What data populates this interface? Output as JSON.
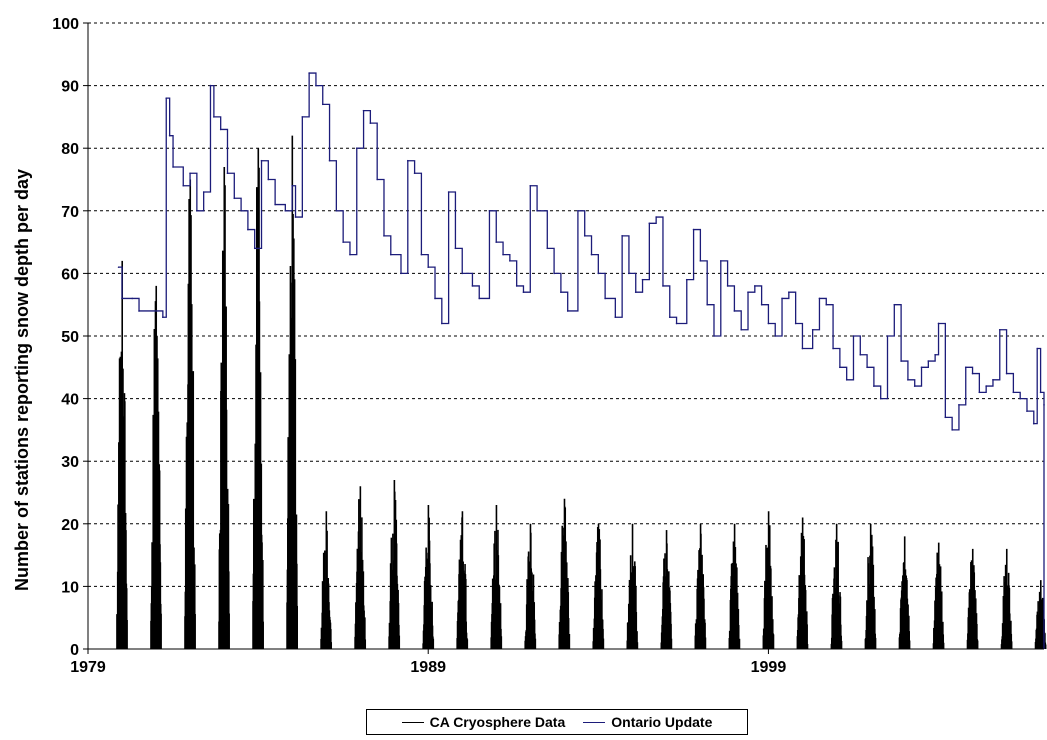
{
  "chart_data": {
    "type": "line",
    "title": "",
    "xlabel": "",
    "ylabel": "Number of stations reporting snow depth per day",
    "xlim": [
      1979,
      2007.1
    ],
    "ylim": [
      0,
      100
    ],
    "y_ticks": [
      "0",
      "10",
      "20",
      "30",
      "40",
      "50",
      "60",
      "70",
      "80",
      "90",
      "100"
    ],
    "x_ticks": [
      {
        "value": 1979,
        "label": "1979"
      },
      {
        "value": 1989,
        "label": "1989"
      },
      {
        "value": 1999,
        "label": "1999"
      }
    ],
    "grid": "horizontal dashed",
    "legend_position": "bottom-center",
    "series": [
      {
        "name": "CA Cryosphere Data",
        "color": "#000000",
        "style": "spikes",
        "seasonal_peaks": [
          {
            "year": 1980.0,
            "peak": 62
          },
          {
            "year": 1981.0,
            "peak": 58
          },
          {
            "year": 1982.0,
            "peak": 75
          },
          {
            "year": 1983.0,
            "peak": 77
          },
          {
            "year": 1984.0,
            "peak": 80
          },
          {
            "year": 1985.0,
            "peak": 82
          },
          {
            "year": 1986.0,
            "peak": 22
          },
          {
            "year": 1987.0,
            "peak": 26
          },
          {
            "year": 1988.0,
            "peak": 27
          },
          {
            "year": 1989.0,
            "peak": 23
          },
          {
            "year": 1990.0,
            "peak": 22
          },
          {
            "year": 1991.0,
            "peak": 23
          },
          {
            "year": 1992.0,
            "peak": 20
          },
          {
            "year": 1993.0,
            "peak": 24
          },
          {
            "year": 1994.0,
            "peak": 20
          },
          {
            "year": 1995.0,
            "peak": 20
          },
          {
            "year": 1996.0,
            "peak": 19
          },
          {
            "year": 1997.0,
            "peak": 20
          },
          {
            "year": 1998.0,
            "peak": 20
          },
          {
            "year": 1999.0,
            "peak": 22
          },
          {
            "year": 2000.0,
            "peak": 21
          },
          {
            "year": 2001.0,
            "peak": 20
          },
          {
            "year": 2002.0,
            "peak": 20
          },
          {
            "year": 2003.0,
            "peak": 18
          },
          {
            "year": 2004.0,
            "peak": 17
          },
          {
            "year": 2005.0,
            "peak": 16
          },
          {
            "year": 2006.0,
            "peak": 16
          },
          {
            "year": 2007.0,
            "peak": 11
          }
        ]
      },
      {
        "name": "Ontario Update",
        "color": "#1c1c7a",
        "style": "step",
        "points": [
          [
            1979.9,
            61
          ],
          [
            1980.0,
            56
          ],
          [
            1980.3,
            56
          ],
          [
            1980.5,
            54
          ],
          [
            1981.2,
            53
          ],
          [
            1981.3,
            88
          ],
          [
            1981.4,
            82
          ],
          [
            1981.5,
            77
          ],
          [
            1981.8,
            74
          ],
          [
            1982.0,
            76
          ],
          [
            1982.2,
            70
          ],
          [
            1982.4,
            73
          ],
          [
            1982.6,
            90
          ],
          [
            1982.7,
            85
          ],
          [
            1982.9,
            83
          ],
          [
            1983.1,
            76
          ],
          [
            1983.3,
            72
          ],
          [
            1983.5,
            70
          ],
          [
            1983.7,
            67
          ],
          [
            1983.9,
            64
          ],
          [
            1984.1,
            78
          ],
          [
            1984.3,
            75
          ],
          [
            1984.5,
            71
          ],
          [
            1984.8,
            70
          ],
          [
            1985.0,
            74
          ],
          [
            1985.1,
            69
          ],
          [
            1985.3,
            85
          ],
          [
            1985.5,
            92
          ],
          [
            1985.7,
            90
          ],
          [
            1985.9,
            87
          ],
          [
            1986.1,
            78
          ],
          [
            1986.3,
            70
          ],
          [
            1986.5,
            65
          ],
          [
            1986.7,
            63
          ],
          [
            1986.9,
            80
          ],
          [
            1987.1,
            86
          ],
          [
            1987.3,
            84
          ],
          [
            1987.5,
            75
          ],
          [
            1987.7,
            66
          ],
          [
            1987.9,
            63
          ],
          [
            1988.2,
            60
          ],
          [
            1988.4,
            78
          ],
          [
            1988.6,
            76
          ],
          [
            1988.8,
            63
          ],
          [
            1989.0,
            61
          ],
          [
            1989.2,
            56
          ],
          [
            1989.4,
            52
          ],
          [
            1989.6,
            73
          ],
          [
            1989.8,
            64
          ],
          [
            1990.0,
            60
          ],
          [
            1990.3,
            58
          ],
          [
            1990.5,
            56
          ],
          [
            1990.8,
            70
          ],
          [
            1991.0,
            65
          ],
          [
            1991.2,
            63
          ],
          [
            1991.4,
            62
          ],
          [
            1991.6,
            58
          ],
          [
            1991.8,
            57
          ],
          [
            1992.0,
            74
          ],
          [
            1992.2,
            70
          ],
          [
            1992.5,
            64
          ],
          [
            1992.7,
            60
          ],
          [
            1992.9,
            57
          ],
          [
            1993.1,
            54
          ],
          [
            1993.4,
            70
          ],
          [
            1993.6,
            66
          ],
          [
            1993.8,
            63
          ],
          [
            1994.0,
            60
          ],
          [
            1994.2,
            56
          ],
          [
            1994.5,
            53
          ],
          [
            1994.7,
            66
          ],
          [
            1994.9,
            60
          ],
          [
            1995.1,
            57
          ],
          [
            1995.3,
            59
          ],
          [
            1995.5,
            68
          ],
          [
            1995.7,
            69
          ],
          [
            1995.9,
            58
          ],
          [
            1996.1,
            53
          ],
          [
            1996.3,
            52
          ],
          [
            1996.6,
            59
          ],
          [
            1996.8,
            67
          ],
          [
            1997.0,
            62
          ],
          [
            1997.2,
            55
          ],
          [
            1997.4,
            50
          ],
          [
            1997.6,
            62
          ],
          [
            1997.8,
            58
          ],
          [
            1998.0,
            54
          ],
          [
            1998.2,
            51
          ],
          [
            1998.4,
            57
          ],
          [
            1998.6,
            58
          ],
          [
            1998.8,
            55
          ],
          [
            1999.0,
            52
          ],
          [
            1999.2,
            50
          ],
          [
            1999.4,
            56
          ],
          [
            1999.6,
            57
          ],
          [
            1999.8,
            52
          ],
          [
            2000.0,
            48
          ],
          [
            2000.3,
            51
          ],
          [
            2000.5,
            56
          ],
          [
            2000.7,
            55
          ],
          [
            2000.9,
            48
          ],
          [
            2001.1,
            45
          ],
          [
            2001.3,
            43
          ],
          [
            2001.5,
            50
          ],
          [
            2001.7,
            47
          ],
          [
            2001.9,
            45
          ],
          [
            2002.1,
            42
          ],
          [
            2002.3,
            40
          ],
          [
            2002.5,
            50
          ],
          [
            2002.7,
            55
          ],
          [
            2002.9,
            46
          ],
          [
            2003.1,
            43
          ],
          [
            2003.3,
            42
          ],
          [
            2003.5,
            45
          ],
          [
            2003.7,
            46
          ],
          [
            2003.9,
            47
          ],
          [
            2004.0,
            52
          ],
          [
            2004.2,
            37
          ],
          [
            2004.4,
            35
          ],
          [
            2004.6,
            39
          ],
          [
            2004.8,
            45
          ],
          [
            2005.0,
            44
          ],
          [
            2005.2,
            41
          ],
          [
            2005.4,
            42
          ],
          [
            2005.6,
            43
          ],
          [
            2005.8,
            51
          ],
          [
            2006.0,
            44
          ],
          [
            2006.2,
            41
          ],
          [
            2006.4,
            40
          ],
          [
            2006.6,
            38
          ],
          [
            2006.8,
            36
          ],
          [
            2006.9,
            48
          ],
          [
            2007.0,
            41
          ],
          [
            2007.1,
            39
          ]
        ]
      }
    ]
  },
  "legend": {
    "items": [
      "CA Cryosphere Data",
      "Ontario Update"
    ]
  }
}
